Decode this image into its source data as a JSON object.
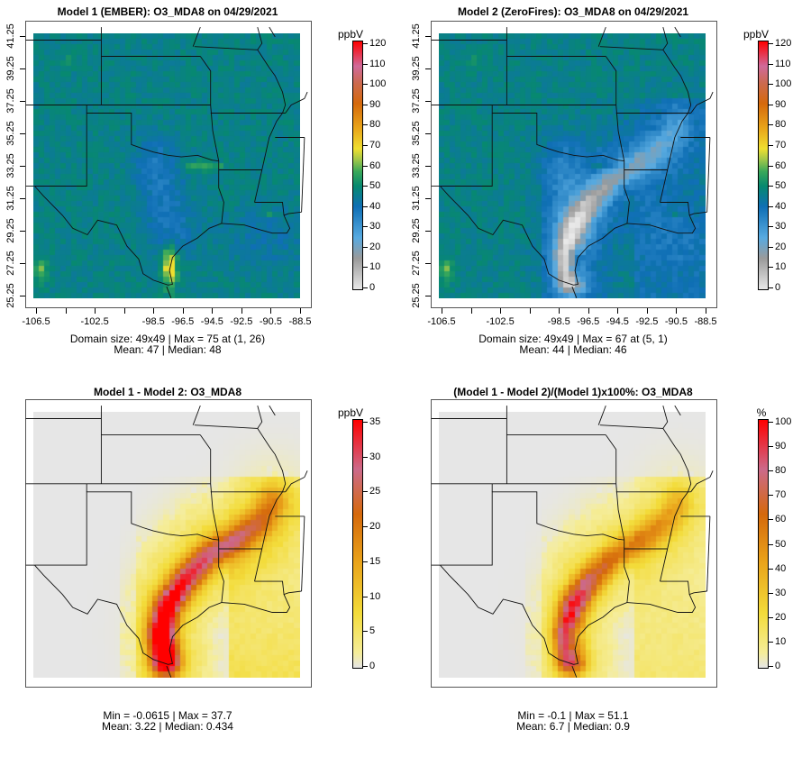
{
  "axes": {
    "x_tick_labels": [
      "-106.5",
      "",
      "-102.5",
      "",
      "-98.5",
      "-96.5",
      "-94.5",
      "-92.5",
      "-90.5",
      "-88.5"
    ],
    "x_tick_values": [
      -106.5,
      -104.5,
      -102.5,
      -100.5,
      -98.5,
      -96.5,
      -94.5,
      -92.5,
      -90.5,
      -88.5
    ],
    "y_tick_labels": [
      "41.25",
      "39.25",
      "37.25",
      "35.25",
      "33.25",
      "31.25",
      "29.25",
      "27.25",
      "25.25"
    ],
    "y_tick_values": [
      41.25,
      39.25,
      37.25,
      35.25,
      33.25,
      31.25,
      29.25,
      27.25,
      25.25
    ]
  },
  "panels": [
    {
      "title": "Model 1 (EMBER): O3_MDA8 on 04/29/2021",
      "field": "model1",
      "stats": [
        "Domain size: 49x49 | Max = 75 at (1, 26)",
        "Mean: 47 |  Median: 48"
      ],
      "colorbar": {
        "unit": "ppbV",
        "min": 0,
        "max": 120,
        "ticks": [
          "0",
          "10",
          "20",
          "30",
          "40",
          "50",
          "60",
          "70",
          "80",
          "90",
          "100",
          "110",
          "120"
        ],
        "scale": "ozone"
      },
      "show_axes": true
    },
    {
      "title": "Model 2 (ZeroFires): O3_MDA8 on 04/29/2021",
      "field": "model2",
      "stats": [
        "Domain size: 49x49 | Max = 67 at (5, 1)",
        "Mean: 44 |  Median: 46"
      ],
      "colorbar": {
        "unit": "ppbV",
        "min": 0,
        "max": 120,
        "ticks": [
          "0",
          "10",
          "20",
          "30",
          "40",
          "50",
          "60",
          "70",
          "80",
          "90",
          "100",
          "110",
          "120"
        ],
        "scale": "ozone"
      },
      "show_axes": true
    },
    {
      "title": "Model 1 - Model 2: O3_MDA8",
      "field": "diff",
      "stats": [
        "Min = -0.0615 | Max = 37.7",
        "Mean: 3.22 |  Median: 0.434"
      ],
      "colorbar": {
        "unit": "ppbV",
        "min": 0,
        "max": 35,
        "ticks": [
          "0",
          "5",
          "10",
          "15",
          "20",
          "25",
          "30",
          "35"
        ],
        "scale": "diff"
      },
      "show_axes": false
    },
    {
      "title": "(Model 1 - Model 2)/(Model 1)x100%: O3_MDA8",
      "field": "pct",
      "stats": [
        "Min = -0.1 | Max = 51.1",
        "Mean: 6.7 |  Median: 0.9"
      ],
      "colorbar": {
        "unit": "%",
        "min": 0,
        "max": 100,
        "ticks": [
          "0",
          "10",
          "20",
          "30",
          "40",
          "50",
          "60",
          "70",
          "80",
          "90",
          "100"
        ],
        "scale": "diff"
      },
      "show_axes": false
    }
  ],
  "colors": {
    "ozone": [
      [
        0,
        "#e8e8e8"
      ],
      [
        15,
        "#9a9a9a"
      ],
      [
        25,
        "#58aae0"
      ],
      [
        40,
        "#0f6fb5"
      ],
      [
        50,
        "#07896f"
      ],
      [
        57,
        "#3aa85a"
      ],
      [
        63,
        "#a4c848"
      ],
      [
        68,
        "#efdf30"
      ],
      [
        78,
        "#e9a51a"
      ],
      [
        90,
        "#d5690c"
      ],
      [
        100,
        "#cc6a50"
      ],
      [
        108,
        "#d06a9a"
      ],
      [
        120,
        "#ff0000"
      ]
    ],
    "diff": [
      [
        0,
        "#e6e6e6"
      ],
      [
        0.06,
        "#f5ed9a"
      ],
      [
        0.22,
        "#f3dc3a"
      ],
      [
        0.43,
        "#e9a21a"
      ],
      [
        0.62,
        "#d5690c"
      ],
      [
        0.8,
        "#cc6a8a"
      ],
      [
        1,
        "#ff0000"
      ]
    ]
  }
}
